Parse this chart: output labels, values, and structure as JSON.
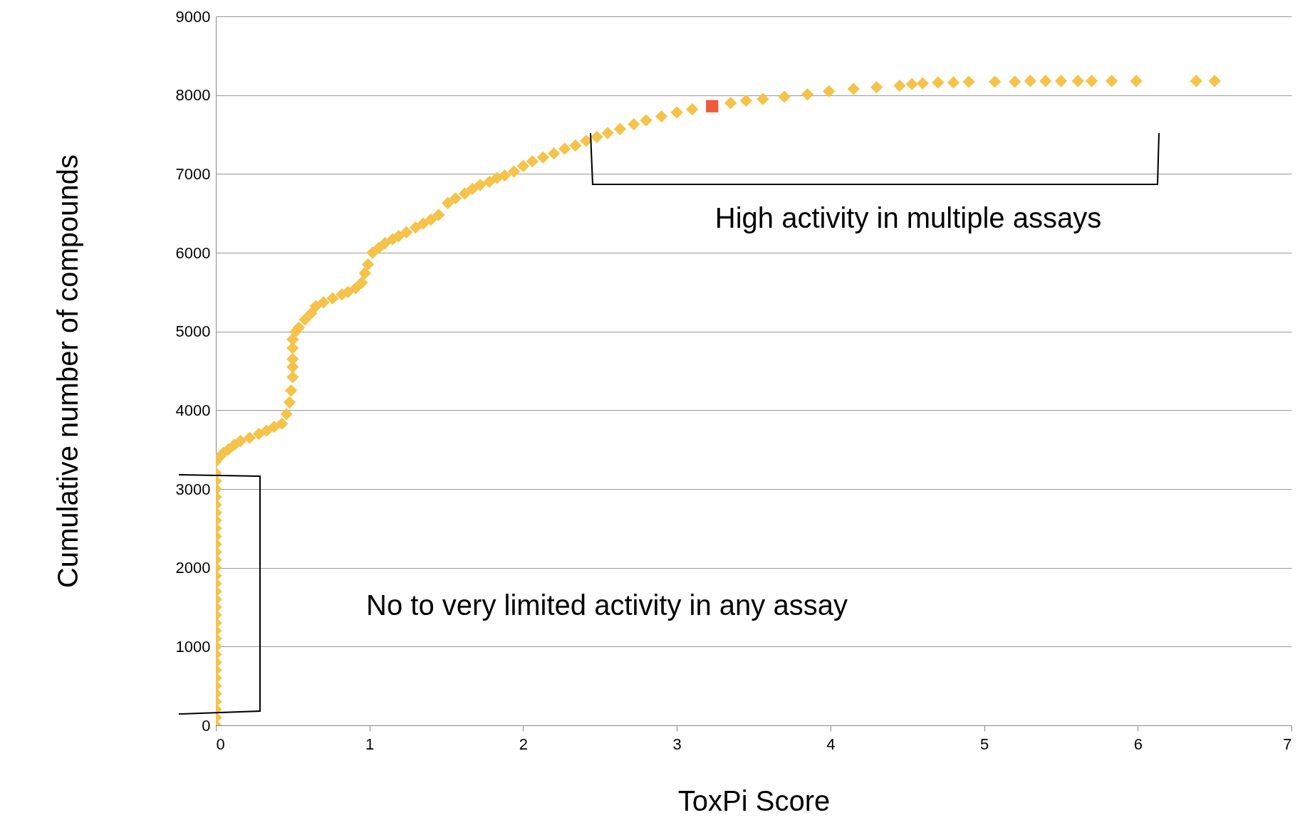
{
  "chart_data": {
    "type": "scatter",
    "xlabel": "ToxPi Score",
    "ylabel": "Cumulative number of compounds",
    "xlim": [
      0,
      7
    ],
    "xticks": [
      0,
      1,
      2,
      3,
      4,
      5,
      6,
      7
    ],
    "ylim": [
      0,
      9000
    ],
    "yticks": [
      0,
      1000,
      2000,
      3000,
      4000,
      5000,
      6000,
      7000,
      8000,
      9000
    ],
    "grid": "y",
    "marker": "diamond",
    "series": [
      {
        "color": "#f5c34a",
        "x": [
          0,
          0,
          0,
          0,
          0,
          0,
          0,
          0,
          0,
          0,
          0,
          0,
          0,
          0,
          0,
          0,
          0,
          0,
          0,
          0,
          0,
          0,
          0,
          0,
          0,
          0,
          0,
          0,
          0,
          0,
          0,
          0,
          0,
          0,
          0.03,
          0.05,
          0.08,
          0.12,
          0.16,
          0.22,
          0.28,
          0.33,
          0.38,
          0.43,
          0.46,
          0.48,
          0.49,
          0.5,
          0.5,
          0.5,
          0.5,
          0.5,
          0.52,
          0.54,
          0.58,
          0.62,
          0.65,
          0.7,
          0.76,
          0.82,
          0.86,
          0.91,
          0.95,
          0.97,
          0.99,
          1.02,
          1.06,
          1.1,
          1.15,
          1.19,
          1.24,
          1.3,
          1.35,
          1.4,
          1.45,
          1.51,
          1.56,
          1.62,
          1.67,
          1.72,
          1.78,
          1.83,
          1.88,
          1.94,
          2.0,
          2.06,
          2.13,
          2.2,
          2.27,
          2.34,
          2.41,
          2.48,
          2.55,
          2.63,
          2.72,
          2.8,
          2.9,
          3.0,
          3.1,
          3.35,
          3.45,
          3.56,
          3.7,
          3.85,
          3.99,
          4.15,
          4.3,
          4.45,
          4.53,
          4.6,
          4.7,
          4.8,
          4.9,
          5.07,
          5.2,
          5.3,
          5.4,
          5.5,
          5.61,
          5.7,
          5.83,
          5.99,
          6.38,
          6.5
        ],
        "values": [
          0,
          100,
          200,
          300,
          400,
          500,
          600,
          700,
          800,
          900,
          1000,
          1100,
          1200,
          1300,
          1400,
          1500,
          1600,
          1700,
          1800,
          1900,
          2000,
          2100,
          2200,
          2300,
          2400,
          2500,
          2600,
          2700,
          2800,
          2900,
          3000,
          3100,
          3200,
          3350,
          3420,
          3460,
          3500,
          3560,
          3610,
          3650,
          3700,
          3740,
          3790,
          3830,
          3950,
          4100,
          4250,
          4420,
          4550,
          4650,
          4790,
          4900,
          5000,
          5050,
          5150,
          5230,
          5320,
          5370,
          5420,
          5470,
          5500,
          5550,
          5620,
          5740,
          5850,
          6000,
          6060,
          6120,
          6170,
          6210,
          6260,
          6320,
          6370,
          6420,
          6480,
          6630,
          6690,
          6750,
          6810,
          6860,
          6900,
          6950,
          6980,
          7030,
          7100,
          7160,
          7210,
          7260,
          7320,
          7360,
          7420,
          7470,
          7520,
          7570,
          7630,
          7680,
          7730,
          7780,
          7820,
          7900,
          7930,
          7950,
          7980,
          8010,
          8050,
          8080,
          8100,
          8120,
          8140,
          8150,
          8160,
          8160,
          8170,
          8170,
          8170,
          8180,
          8180,
          8180,
          8180,
          8180,
          8180,
          8180,
          8180,
          8180
        ]
      },
      {
        "color": "#ee5a3a",
        "marker": "square",
        "x": [
          3.23
        ],
        "values": [
          7860
        ]
      }
    ],
    "annotations": [
      "High activity in multiple assays",
      "No to very limited activity in any assay"
    ]
  }
}
